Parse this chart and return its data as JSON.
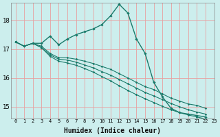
{
  "xlabel": "Humidex (Indice chaleur)",
  "bg_color": "#cceeed",
  "grid_color": "#e8a0a0",
  "line_color": "#1a7a6a",
  "ylim": [
    14.6,
    18.6
  ],
  "yticks": [
    15,
    16,
    17,
    18
  ],
  "x_ticks": [
    0,
    1,
    2,
    3,
    4,
    5,
    6,
    7,
    8,
    9,
    10,
    11,
    12,
    13,
    14,
    15,
    16,
    17,
    18,
    19,
    20,
    21,
    22,
    23
  ],
  "series": [
    [
      17.25,
      17.1,
      17.2,
      17.2,
      17.45,
      17.15,
      17.35,
      17.5,
      17.6,
      17.7,
      17.85,
      18.15,
      18.55,
      18.25,
      17.35,
      16.85,
      15.85,
      15.35,
      14.95,
      14.8,
      14.75,
      14.7,
      14.65
    ],
    [
      17.25,
      17.1,
      17.2,
      17.1,
      16.85,
      16.7,
      16.7,
      16.65,
      16.58,
      16.5,
      16.4,
      16.3,
      16.15,
      16.0,
      15.85,
      15.7,
      15.6,
      15.45,
      15.3,
      15.2,
      15.1,
      15.05,
      14.95
    ],
    [
      17.25,
      17.1,
      17.2,
      17.05,
      16.8,
      16.65,
      16.62,
      16.55,
      16.45,
      16.35,
      16.22,
      16.1,
      15.95,
      15.8,
      15.65,
      15.5,
      15.38,
      15.25,
      15.12,
      15.0,
      14.9,
      14.82,
      14.75
    ],
    [
      17.25,
      17.1,
      17.2,
      17.05,
      16.75,
      16.58,
      16.52,
      16.44,
      16.33,
      16.2,
      16.05,
      15.9,
      15.73,
      15.57,
      15.42,
      15.28,
      15.15,
      15.02,
      14.9,
      14.8,
      14.72,
      14.65,
      14.58
    ]
  ]
}
